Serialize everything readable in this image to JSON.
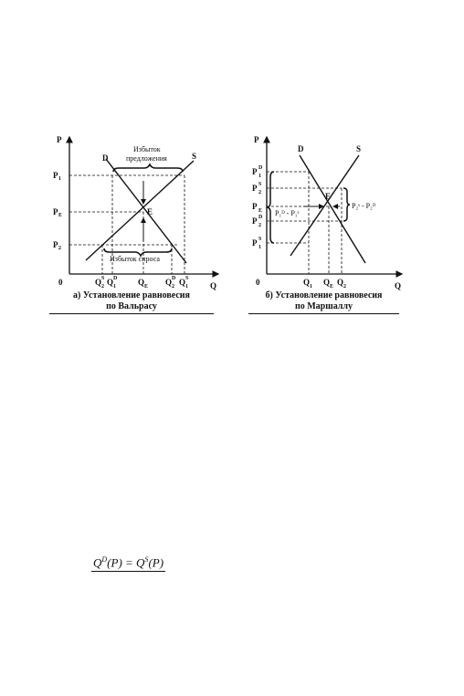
{
  "figure_a": {
    "axis_p": "P",
    "axis_q": "Q",
    "origin": "0",
    "curve_d": "D",
    "curve_s": "S",
    "point_e": "E",
    "p1": "P",
    "p1_sub": "1",
    "pe": "P",
    "pe_sub": "E",
    "p2": "P",
    "p2_sub": "2",
    "excess_supply_line1": "Избыток",
    "excess_supply_line2": "предложения",
    "excess_demand": "Избыток спроса",
    "q_labels": [
      {
        "base": "Q",
        "sup": "S",
        "sub": "2"
      },
      {
        "base": "Q",
        "sup": "D",
        "sub": "1"
      },
      {
        "base": "Q",
        "sup": "",
        "sub": "E"
      },
      {
        "base": "Q",
        "sup": "D",
        "sub": "2"
      },
      {
        "base": "Q",
        "sup": "S",
        "sub": "1"
      }
    ],
    "caption_line1": "а) Установление равновесия",
    "caption_line2": "по Вальрасу"
  },
  "figure_b": {
    "axis_p": "P",
    "axis_q": "Q",
    "origin": "0",
    "curve_d": "D",
    "curve_s": "S",
    "point_e": "E",
    "p_labels": [
      {
        "base": "P",
        "sup": "D",
        "sub": "1"
      },
      {
        "base": "P",
        "sup": "S",
        "sub": "2"
      },
      {
        "base": "P",
        "sup": "",
        "sub": "E"
      },
      {
        "base": "P",
        "sup": "D",
        "sub": "2"
      },
      {
        "base": "P",
        "sup": "S",
        "sub": "1"
      }
    ],
    "left_note": "P₁ᴰ - P₁ˢ",
    "right_note": "P₂ˢ - P₂ᴰ",
    "q_labels": [
      {
        "base": "Q",
        "sub": "1"
      },
      {
        "base": "Q",
        "sub": "E"
      },
      {
        "base": "Q",
        "sub": "2"
      }
    ],
    "caption_line1": "б) Установление равновесия",
    "caption_line2": "по Маршаллу"
  },
  "formula": {
    "lhs": "Q",
    "lhs_sup": "D",
    "lhs_arg": "(P) = ",
    "rhs": "Q",
    "rhs_sup": "S",
    "rhs_arg": "(P)"
  }
}
